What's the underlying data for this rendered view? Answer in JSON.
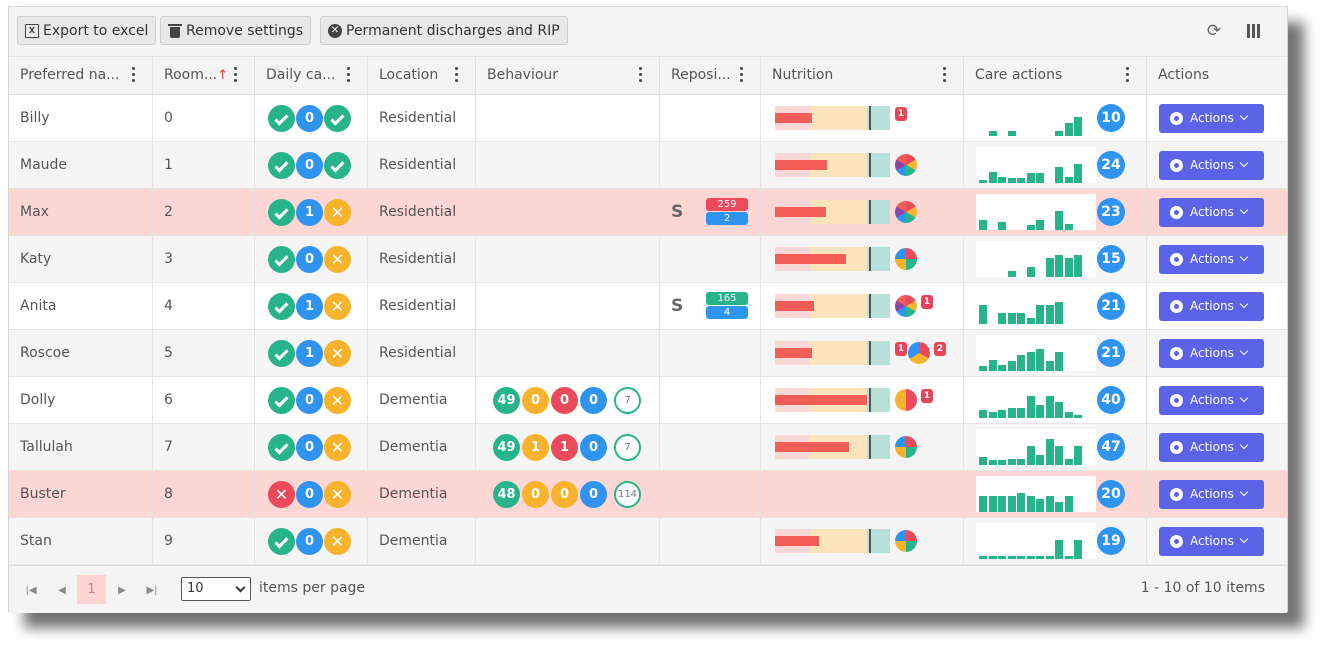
{
  "toolbar": {
    "export_label": "Export to excel",
    "remove_label": "Remove settings",
    "discharge_label": "Permanent discharges and RIP"
  },
  "columns": [
    "Preferred na...",
    "Room...",
    "Daily ca...",
    "Location",
    "Behaviour",
    "Reposi...",
    "Nutrition",
    "Care actions",
    "Actions"
  ],
  "colors": {
    "green": "#27b48a",
    "blue": "#2f93f0",
    "orange": "#f8b32c",
    "red": "#ec4a5b",
    "accent": "#5b63e8",
    "alert_row": "#fed7d5"
  },
  "rows": [
    {
      "name": "Billy",
      "room": "0",
      "daily": [
        "check",
        "0",
        "check"
      ],
      "daily_colors": [
        "green",
        "blue",
        "green"
      ],
      "location": "Residential",
      "behaviour": null,
      "repo": null,
      "nutrition": {
        "fill": 0.32,
        "pies": [],
        "badges": [
          "1"
        ]
      },
      "care": {
        "bars": [
          0,
          0.15,
          0,
          0.15,
          0,
          0,
          0,
          0,
          0.15,
          0.4,
          0.6,
          0
        ],
        "count": "10"
      },
      "alert": false
    },
    {
      "name": "Maude",
      "room": "1",
      "daily": [
        "check",
        "0",
        "check"
      ],
      "daily_colors": [
        "green",
        "blue",
        "green"
      ],
      "location": "Residential",
      "behaviour": null,
      "repo": null,
      "nutrition": {
        "fill": 0.45,
        "pies": [
          "multi"
        ],
        "badges": []
      },
      "care": {
        "bars": [
          0.1,
          0.35,
          0.2,
          0.15,
          0.15,
          0.3,
          0.3,
          0,
          0.5,
          0.2,
          0.6,
          0
        ],
        "count": "24"
      },
      "alert": false
    },
    {
      "name": "Max",
      "room": "2",
      "daily": [
        "check",
        "1",
        "x"
      ],
      "daily_colors": [
        "green",
        "blue",
        "orange"
      ],
      "location": "Residential",
      "behaviour": null,
      "repo": {
        "top": "259",
        "bottom": "2",
        "top_color": "red"
      },
      "nutrition": {
        "fill": 0.44,
        "pies": [
          "multi"
        ],
        "badges": []
      },
      "care": {
        "bars": [
          0.3,
          0,
          0.25,
          0,
          0,
          0.15,
          0.3,
          0,
          0.6,
          0.2,
          0,
          0
        ],
        "count": "23"
      },
      "alert": true
    },
    {
      "name": "Katy",
      "room": "3",
      "daily": [
        "check",
        "0",
        "x"
      ],
      "daily_colors": [
        "green",
        "blue",
        "orange"
      ],
      "location": "Residential",
      "behaviour": null,
      "repo": null,
      "nutrition": {
        "fill": 0.62,
        "pies": [
          "quad"
        ],
        "badges": []
      },
      "care": {
        "bars": [
          0,
          0,
          0,
          0.2,
          0,
          0.3,
          0,
          0.6,
          0.7,
          0.6,
          0.7,
          0
        ],
        "count": "15"
      },
      "alert": false
    },
    {
      "name": "Anita",
      "room": "4",
      "daily": [
        "check",
        "1",
        "x"
      ],
      "daily_colors": [
        "green",
        "blue",
        "orange"
      ],
      "location": "Residential",
      "behaviour": null,
      "repo": {
        "top": "165",
        "bottom": "4",
        "top_color": "green"
      },
      "nutrition": {
        "fill": 0.34,
        "pies": [
          "multi"
        ],
        "badges": [
          "1"
        ]
      },
      "care": {
        "bars": [
          0.6,
          0,
          0.35,
          0.35,
          0.35,
          0.2,
          0.6,
          0.6,
          0.7,
          0,
          0,
          0
        ],
        "count": "21"
      },
      "alert": false
    },
    {
      "name": "Roscoe",
      "room": "5",
      "daily": [
        "check",
        "1",
        "x"
      ],
      "daily_colors": [
        "green",
        "blue",
        "orange"
      ],
      "location": "Residential",
      "behaviour": null,
      "repo": null,
      "nutrition": {
        "fill": 0.32,
        "pies": [
          "tri"
        ],
        "badges": [
          "1",
          "2"
        ]
      },
      "care": {
        "bars": [
          0.15,
          0.35,
          0.2,
          0.3,
          0.5,
          0.6,
          0.7,
          0.3,
          0.6,
          0,
          0,
          0
        ],
        "count": "21"
      },
      "alert": false
    },
    {
      "name": "Dolly",
      "room": "6",
      "daily": [
        "check",
        "0",
        "x"
      ],
      "daily_colors": [
        "green",
        "blue",
        "orange"
      ],
      "location": "Dementia",
      "behaviour": {
        "values": [
          "49",
          "0",
          "0",
          "0"
        ],
        "colors": [
          "green",
          "orange",
          "red",
          "blue"
        ],
        "outline": "7"
      },
      "repo": null,
      "nutrition": {
        "fill": 0.8,
        "pies": [
          "half"
        ],
        "badges": [
          "1"
        ]
      },
      "care": {
        "bars": [
          0.25,
          0.2,
          0.25,
          0.3,
          0.3,
          0.7,
          0.4,
          0.7,
          0.5,
          0.2,
          0.1,
          0
        ],
        "count": "40"
      },
      "alert": false
    },
    {
      "name": "Tallulah",
      "room": "7",
      "daily": [
        "check",
        "0",
        "x"
      ],
      "daily_colors": [
        "green",
        "blue",
        "orange"
      ],
      "location": "Dementia",
      "behaviour": {
        "values": [
          "49",
          "1",
          "1",
          "0"
        ],
        "colors": [
          "green",
          "orange",
          "red",
          "blue"
        ],
        "outline": "7"
      },
      "repo": null,
      "nutrition": {
        "fill": 0.64,
        "pies": [
          "quad"
        ],
        "badges": []
      },
      "care": {
        "bars": [
          0.25,
          0.15,
          0.15,
          0.2,
          0.2,
          0.6,
          0.3,
          0.8,
          0.6,
          0.2,
          0.6,
          0
        ],
        "count": "47"
      },
      "alert": false
    },
    {
      "name": "Buster",
      "room": "8",
      "daily": [
        "x",
        "0",
        "x"
      ],
      "daily_colors": [
        "red",
        "blue",
        "orange"
      ],
      "location": "Dementia",
      "behaviour": {
        "values": [
          "48",
          "0",
          "0",
          "0"
        ],
        "colors": [
          "green",
          "orange",
          "orange",
          "blue"
        ],
        "outline": "114"
      },
      "repo": null,
      "nutrition": null,
      "care": {
        "bars": [
          0.5,
          0.5,
          0.5,
          0.5,
          0.6,
          0.5,
          0.4,
          0.5,
          0.3,
          0.5,
          0,
          0
        ],
        "count": "20"
      },
      "alert": true
    },
    {
      "name": "Stan",
      "room": "9",
      "daily": [
        "check",
        "0",
        "x"
      ],
      "daily_colors": [
        "green",
        "blue",
        "orange"
      ],
      "location": "Dementia",
      "behaviour": null,
      "repo": null,
      "nutrition": {
        "fill": 0.38,
        "pies": [
          "quad"
        ],
        "badges": []
      },
      "care": {
        "bars": [
          0.1,
          0.1,
          0.1,
          0.1,
          0.1,
          0.1,
          0.1,
          0.1,
          0.6,
          0.1,
          0.6,
          0
        ],
        "count": "19"
      },
      "alert": false
    }
  ],
  "actions_label": "Actions",
  "pager": {
    "current": "1",
    "page_size": "10",
    "per_page_label": "items per page",
    "info": "1 - 10 of 10 items"
  }
}
